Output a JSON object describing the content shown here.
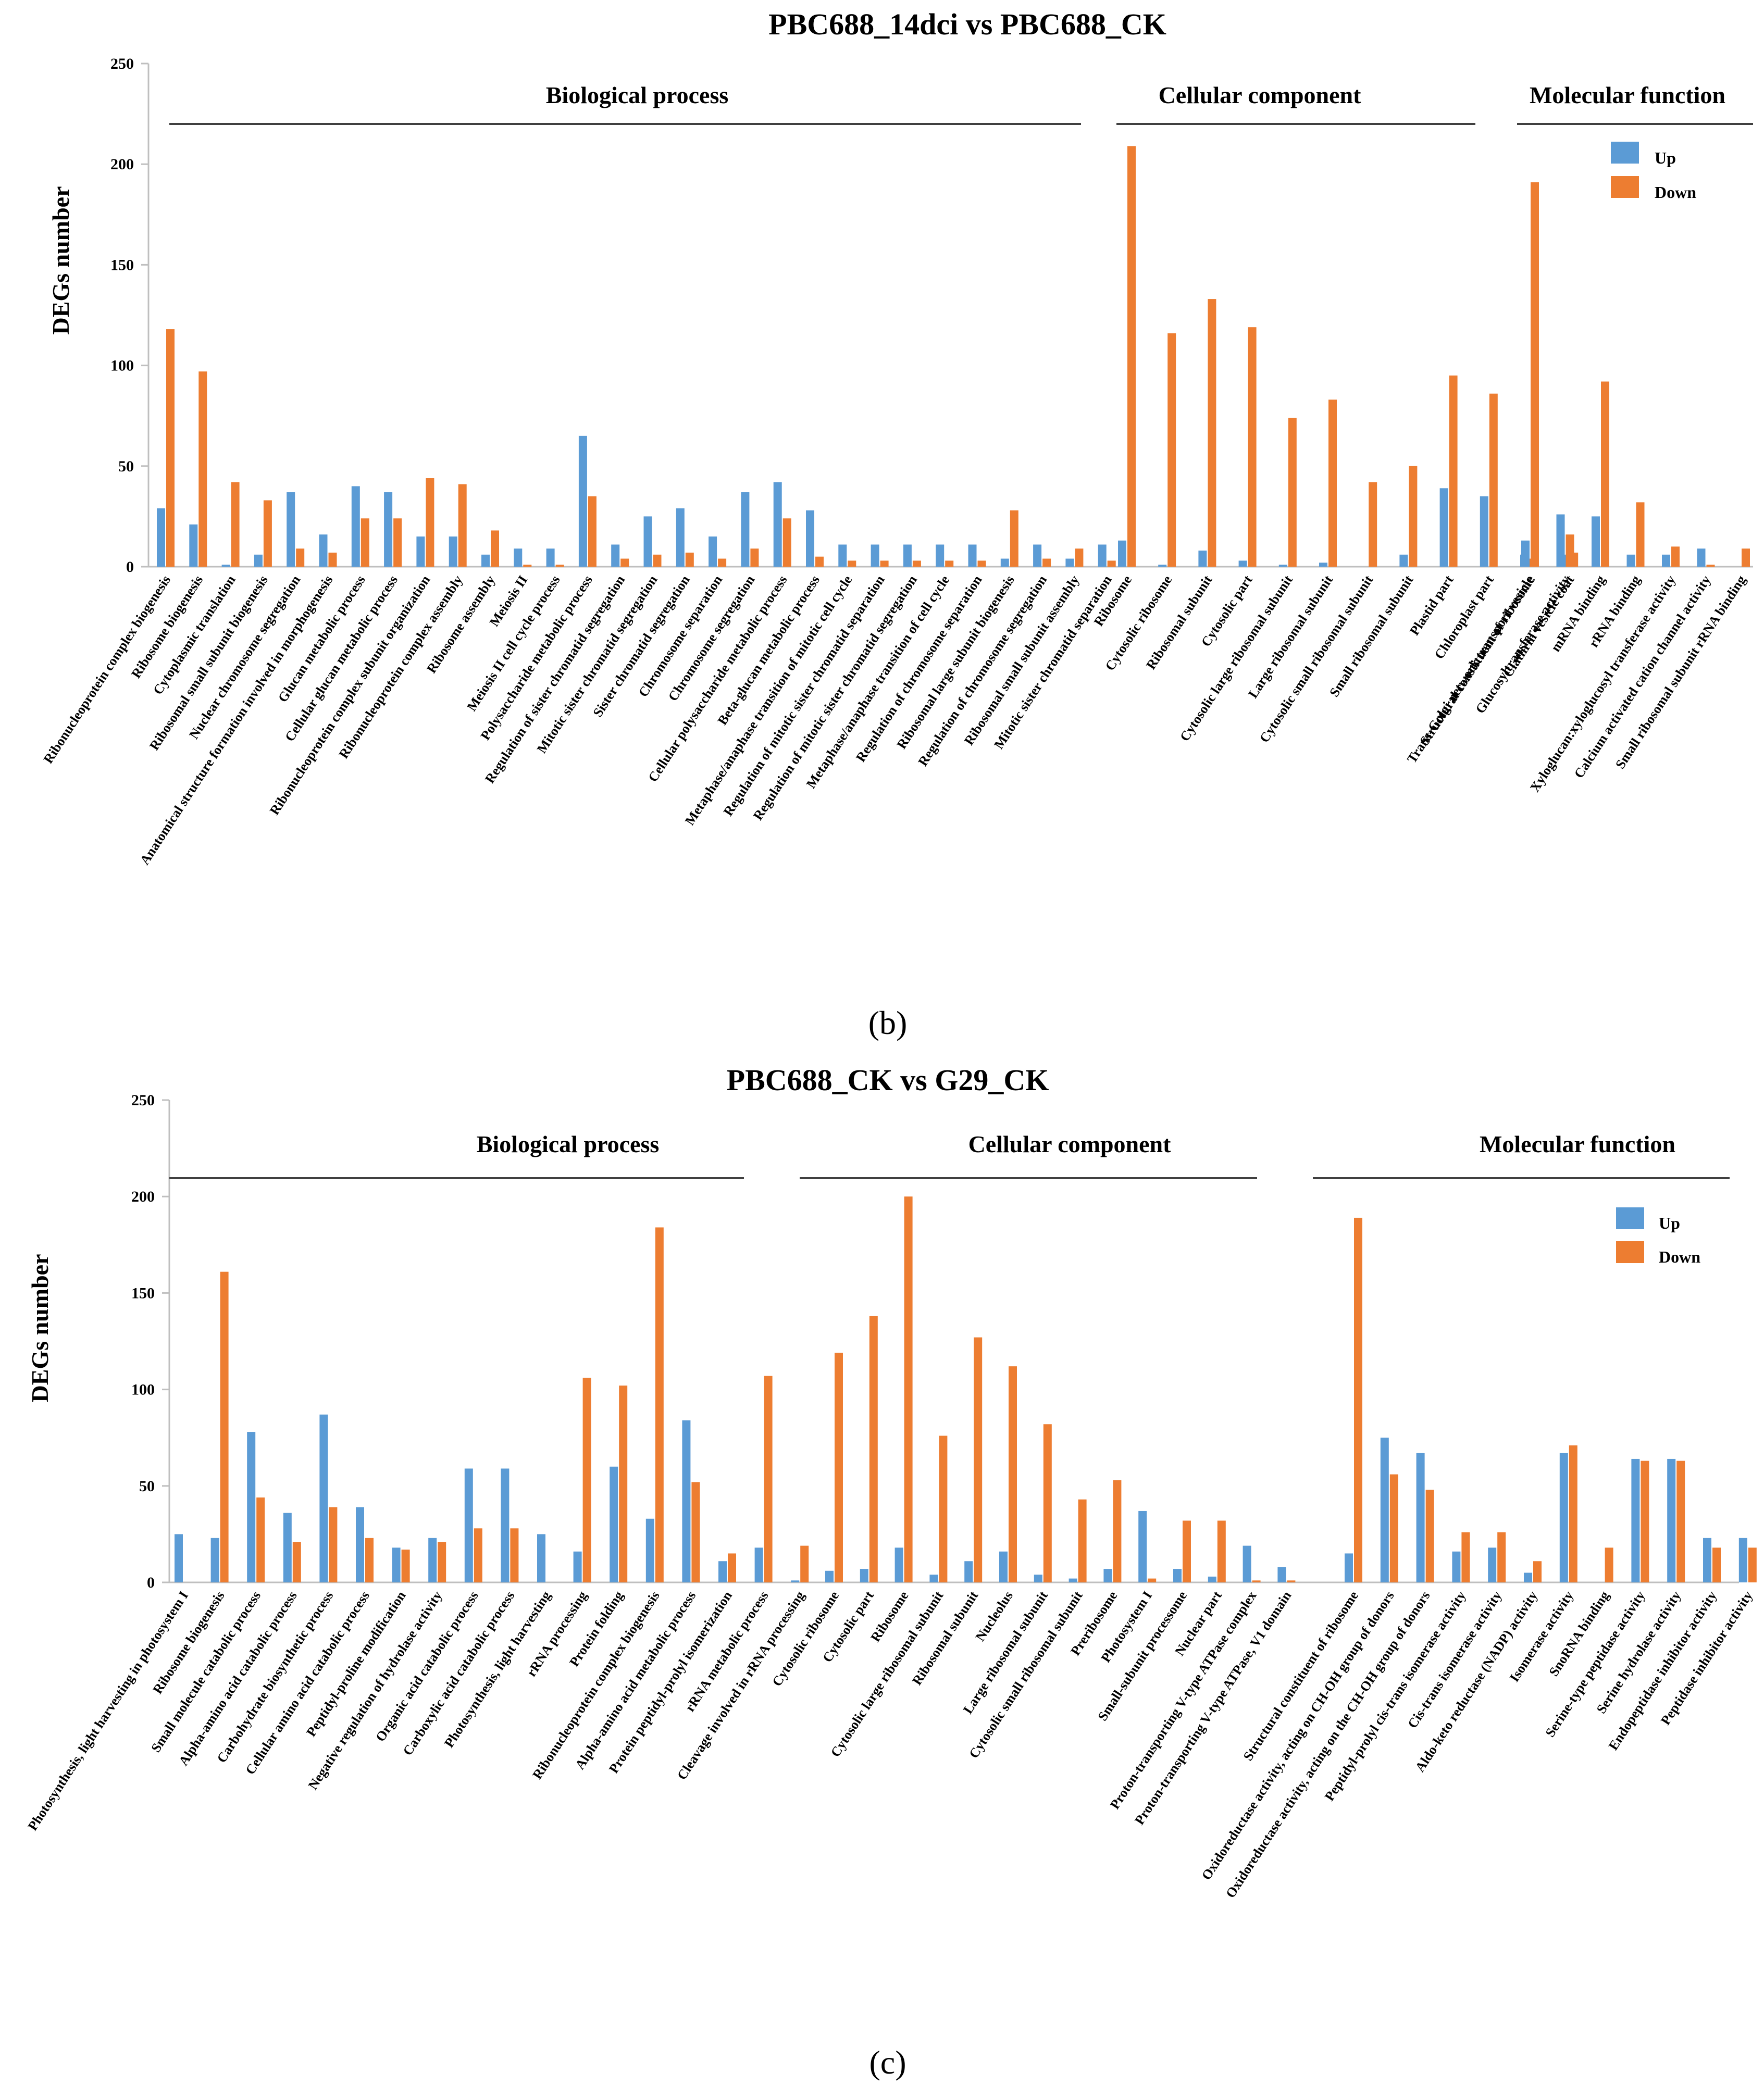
{
  "colors": {
    "up": "#5b9bd5",
    "down": "#ed7d31",
    "axis": "#bfbfbf",
    "line": "#404040"
  },
  "chart_data": [
    {
      "type": "bar",
      "panel_label": "(b)",
      "title": "PBC688_14dci vs PBC688_CK",
      "ylabel": "DEGs number",
      "ylim": [
        0,
        250
      ],
      "yticks": [
        "0",
        "50",
        "100",
        "150",
        "200",
        "250"
      ],
      "legend": {
        "position": "top-right",
        "entries": [
          "Up",
          "Down"
        ]
      },
      "series_names": [
        "Up",
        "Down"
      ],
      "groups": [
        {
          "name": "Biological process",
          "categories": [
            "Ribonucleoprotein complex biogenesis",
            "Ribosome biogenesis",
            "Cytoplasmic translation",
            "Ribosomal small subunit biogenesis",
            "Nuclear chromosome segregation",
            "Anatomical structure formation involved in morphogenesis",
            "Glucan metabolic process",
            "Cellular glucan metabolic process",
            "Ribonucleoprotein complex subunit organization",
            "Ribonucleoprotein complex assembly",
            "Ribosome assembly",
            "Meiosis II",
            "Meiosis II cell cycle process",
            "Polysaccharide metabolic process",
            "Regulation of sister chromatid segregation",
            "Mitotic sister chromatid segregation",
            "Sister chromatid segregation",
            "Chromosome separation",
            "Chromosome segregation",
            "Cellular polysaccharide metabolic process",
            "Beta-glucan metabolic process",
            "Metaphase/anaphase transition of mitotic cell cycle",
            "Regulation of mitotic sister chromatid separation",
            "Regulation of mitotic sister chromatid segregation",
            "Metaphase/anaphase transition of cell cycle",
            "Regulation of chromosome separation",
            "Ribosomal large subunit biogenesis",
            "Regulation of chromosome segregation",
            "Ribosomal small subunit assembly",
            "Mitotic sister chromatid separation"
          ],
          "up": [
            29,
            21,
            1,
            6,
            37,
            16,
            40,
            37,
            15,
            15,
            6,
            9,
            9,
            65,
            11,
            25,
            29,
            15,
            37,
            42,
            28,
            11,
            11,
            11,
            11,
            11,
            4,
            11,
            4,
            11
          ],
          "down": [
            118,
            97,
            42,
            33,
            9,
            7,
            24,
            24,
            44,
            41,
            18,
            1,
            1,
            35,
            4,
            6,
            7,
            4,
            9,
            24,
            5,
            3,
            3,
            3,
            3,
            3,
            28,
            4,
            9,
            3
          ]
        },
        {
          "name": "Cellular component",
          "categories": [
            "Ribosome",
            "Cytosolic ribosome",
            "Ribosomal subunit",
            "Cytosolic part",
            "Cytosolic large ribosomal subunit",
            "Large ribosomal subunit",
            "Cytosolic small ribosomal subunit",
            "Small ribosomal subunit",
            "Plastid part",
            "Chloroplast part",
            "Trans-Golgi network transport vesicle",
            "Clathrin vesicle coat"
          ],
          "up": [
            13,
            1,
            8,
            3,
            1,
            2,
            0,
            6,
            39,
            35,
            6,
            6
          ],
          "down": [
            209,
            116,
            133,
            119,
            74,
            83,
            42,
            50,
            95,
            86,
            4,
            7
          ]
        },
        {
          "name": "Molecular function",
          "categories": [
            "Structural constituent of ribosome",
            "Glucosyltransferase activity",
            "mRNA binding",
            "rRNA binding",
            "Xyloglucan:xyloglucosyl transferase activity",
            "Calcium activated cation channel activity",
            "Small ribosomal subunit rRNA binding"
          ],
          "up": [
            13,
            26,
            25,
            6,
            6,
            9,
            0
          ],
          "down": [
            191,
            16,
            92,
            32,
            10,
            1,
            9
          ]
        }
      ]
    },
    {
      "type": "bar",
      "panel_label": "(c)",
      "title": "PBC688_CK vs G29_CK",
      "ylabel": "DEGs number",
      "ylim": [
        0,
        250
      ],
      "yticks": [
        "0",
        "50",
        "100",
        "150",
        "200",
        "250"
      ],
      "legend": {
        "position": "top-right",
        "entries": [
          "Up",
          "Down"
        ]
      },
      "series_names": [
        "Up",
        "Down"
      ],
      "groups": [
        {
          "name": "Biological process",
          "categories": [
            "Photosynthesis, light harvesting in photosystem I",
            "Ribosome biogenesis",
            "Small molecule catabolic process",
            "Alpha-amino acid catabolic process",
            "Carbohydrate biosynthetic process",
            "Cellular amino acid catabolic process",
            "Peptidyl-proline modification",
            "Negative regulation of hydrolase activity",
            "Organic acid catabolic process",
            "Carboxylic acid catabolic process",
            "Photosynthesis, light harvesting",
            "rRNA processing",
            "Protein folding",
            "Ribonucleoprotein complex biogenesis",
            "Alpha-amino acid metabolic process",
            "Protein peptidyl-prolyl isomerization",
            "rRNA metabolic process",
            "Cleavage involved in rRNA processing"
          ],
          "up": [
            25,
            23,
            78,
            36,
            87,
            39,
            18,
            23,
            59,
            59,
            25,
            16,
            60,
            33,
            84,
            11,
            18,
            1
          ],
          "down": [
            0,
            161,
            44,
            21,
            39,
            23,
            17,
            21,
            28,
            28,
            0,
            106,
            102,
            184,
            52,
            15,
            107,
            19
          ]
        },
        {
          "name": "Cellular component",
          "categories": [
            "Cytosolic ribosome",
            "Cytosolic part",
            "Ribosome",
            "Cytosolic large ribosomal subunit",
            "Ribosomal subunit",
            "Nucleolus",
            "Large ribosomal subunit",
            "Cytosolic small ribosomal subunit",
            "Preribosome",
            "Photosystem I",
            "Small-subunit processome",
            "Nuclear part",
            "Proton-transporting V-type ATPase complex",
            "Proton-transporting V-type ATPase, V1 domain"
          ],
          "up": [
            6,
            7,
            18,
            4,
            11,
            16,
            4,
            2,
            7,
            37,
            7,
            3,
            19,
            8
          ],
          "down": [
            119,
            138,
            200,
            76,
            127,
            112,
            82,
            43,
            53,
            2,
            32,
            32,
            1,
            1
          ]
        },
        {
          "name": "Molecular function",
          "categories": [
            "Structural constituent of ribosome",
            "Oxidoreductase activity, acting on CH-OH group of donors",
            "Oxidoreductase activity, acting on the CH-OH group of donors",
            "Peptidyl-prolyl cis-trans isomerase activity",
            "Cis-trans isomerase activity",
            "Aldo-keto reductase (NADP) activity",
            "Isomerase activity",
            "SnoRNA binding",
            "Serine-type peptidase activity",
            "Serine hydrolase activity",
            "Endopeptidase inhibitor activity",
            "Peptidase inhibitor activity"
          ],
          "up": [
            15,
            75,
            67,
            16,
            18,
            5,
            67,
            0,
            64,
            64,
            23,
            23
          ],
          "down": [
            189,
            56,
            48,
            26,
            26,
            11,
            71,
            18,
            63,
            63,
            18,
            18
          ]
        }
      ]
    }
  ]
}
